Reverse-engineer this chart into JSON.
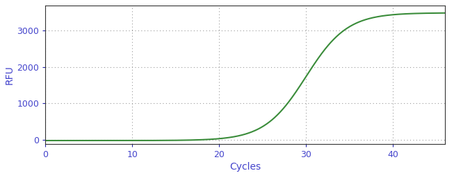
{
  "xlabel": "Cycles",
  "ylabel": "RFU",
  "xlim": [
    0,
    46
  ],
  "ylim": [
    -120,
    3700
  ],
  "xticks": [
    0,
    10,
    20,
    30,
    40
  ],
  "yticks": [
    0,
    1000,
    2000,
    3000
  ],
  "line_color": "#3a8c3a",
  "line_width": 1.5,
  "grid_color": "#999999",
  "grid_linestyle": "dotted",
  "background_color": "#ffffff",
  "sigmoid_L": 3520,
  "sigmoid_k": 0.42,
  "sigmoid_x0": 30.0,
  "x_start": 0,
  "x_end": 46,
  "tick_label_color": "#4444cc",
  "tick_fontsize": 9,
  "label_fontsize": 10
}
